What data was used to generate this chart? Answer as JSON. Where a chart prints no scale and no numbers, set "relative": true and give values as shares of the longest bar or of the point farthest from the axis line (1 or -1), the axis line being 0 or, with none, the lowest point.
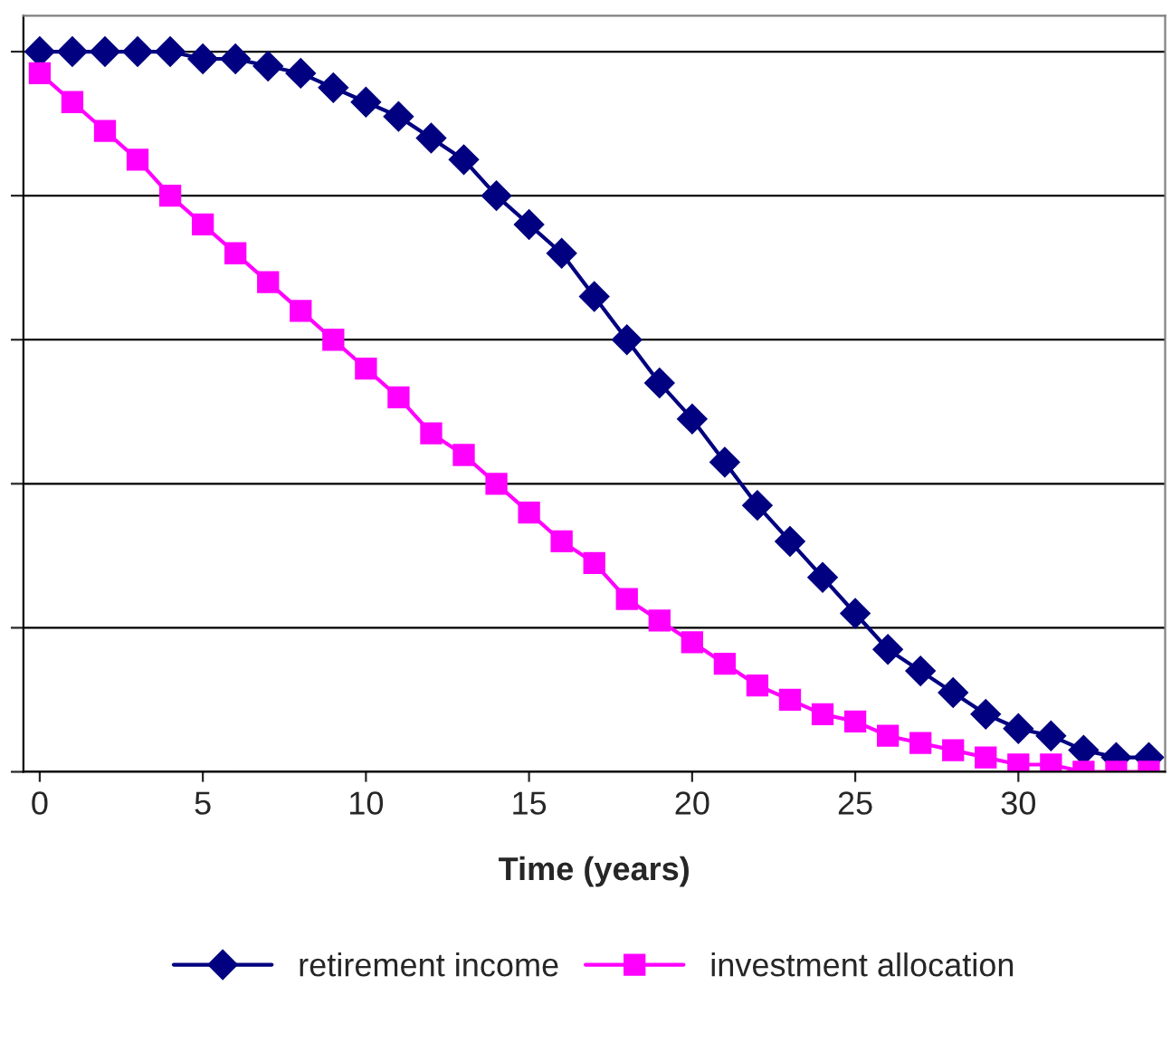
{
  "chart_data": {
    "type": "line",
    "relative": true,
    "xlabel": "Time (years)",
    "x": [
      0,
      1,
      2,
      3,
      4,
      5,
      6,
      7,
      8,
      9,
      10,
      11,
      12,
      13,
      14,
      15,
      16,
      17,
      18,
      19,
      20,
      21,
      22,
      23,
      24,
      25,
      26,
      27,
      28,
      29,
      30,
      31,
      32,
      33,
      34
    ],
    "xlim": [
      -0.5,
      34.5
    ],
    "xticks": [
      0,
      5,
      10,
      15,
      20,
      25,
      30
    ],
    "series": [
      {
        "name": "retirement income",
        "color": "#000080",
        "marker": "diamond",
        "values": [
          1.0,
          1.0,
          1.0,
          1.0,
          1.0,
          0.99,
          0.99,
          0.98,
          0.97,
          0.95,
          0.93,
          0.91,
          0.88,
          0.85,
          0.8,
          0.76,
          0.72,
          0.66,
          0.6,
          0.54,
          0.49,
          0.43,
          0.37,
          0.32,
          0.27,
          0.22,
          0.17,
          0.14,
          0.11,
          0.08,
          0.06,
          0.05,
          0.03,
          0.02,
          0.02
        ]
      },
      {
        "name": "investment allocation",
        "color": "#ff00ff",
        "marker": "square",
        "values": [
          0.97,
          0.93,
          0.89,
          0.85,
          0.8,
          0.76,
          0.72,
          0.68,
          0.64,
          0.6,
          0.56,
          0.52,
          0.47,
          0.44,
          0.4,
          0.36,
          0.32,
          0.29,
          0.24,
          0.21,
          0.18,
          0.15,
          0.12,
          0.1,
          0.08,
          0.07,
          0.05,
          0.04,
          0.03,
          0.02,
          0.01,
          0.01,
          0.0,
          0.0,
          0.0
        ]
      }
    ],
    "grid": "y",
    "legend": "bottom",
    "tick_labels": "x",
    "line_style": "solid"
  }
}
